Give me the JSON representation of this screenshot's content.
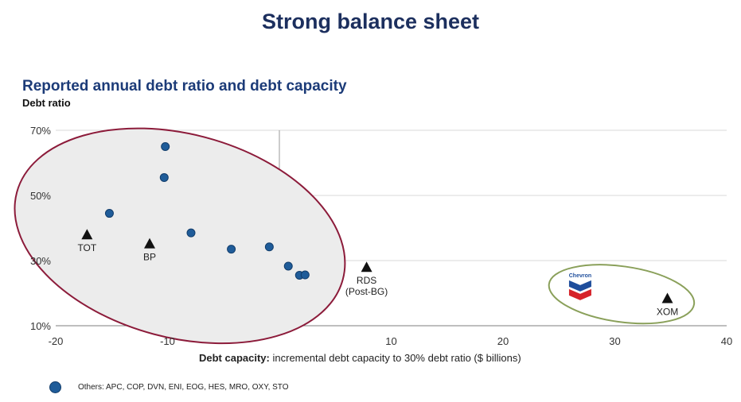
{
  "header": {
    "title": "Strong balance sheet"
  },
  "colors": {
    "accent_navy": "#1c2f5e",
    "point_blue": "#1f5c99",
    "peer_ellipse_stroke": "#8c1b3a",
    "peer_ellipse_fill": "#ececec",
    "chevron_ellipse_stroke": "#8aa05a",
    "grid": "#d9d9d9"
  },
  "chart_data": {
    "type": "scatter",
    "title": "Reported annual debt ratio and debt capacity",
    "ylabel": "Debt ratio",
    "xlabel_bold": "Debt capacity:",
    "xlabel_rest": "incremental debt capacity to 30% debt ratio ($ billions)",
    "xlim": [
      -20,
      40
    ],
    "ylim": [
      10,
      70
    ],
    "x_ticks": [
      -20,
      -10,
      0,
      10,
      20,
      30,
      40
    ],
    "x_tick_labels": [
      "-20",
      "-10",
      "",
      "10",
      "20",
      "30",
      "40"
    ],
    "y_ticks": [
      10,
      30,
      50,
      70
    ],
    "y_tick_labels": [
      "10%",
      "30%",
      "50%",
      "70%"
    ],
    "grid": "horizontal",
    "vertical_reference_x": 0,
    "series": [
      {
        "name": "Others: APC, COP, DVN, ENI, EOG, HES, MRO, OXY, STO",
        "marker": "circle",
        "points": [
          {
            "x": -10.2,
            "y": 65
          },
          {
            "x": -10.3,
            "y": 55.5
          },
          {
            "x": -15.2,
            "y": 44.5
          },
          {
            "x": -7.9,
            "y": 38.5
          },
          {
            "x": -4.3,
            "y": 33.5
          },
          {
            "x": -0.9,
            "y": 34.2
          },
          {
            "x": 0.8,
            "y": 28.3
          },
          {
            "x": 1.8,
            "y": 25.5
          },
          {
            "x": 2.3,
            "y": 25.6
          }
        ]
      },
      {
        "marker": "triangle",
        "points": [
          {
            "x": -17.2,
            "y": 38,
            "label": "TOT"
          },
          {
            "x": -11.6,
            "y": 35.2,
            "label": "BP"
          },
          {
            "x": 7.8,
            "y": 28,
            "label": "RDS",
            "label2": "(Post-BG)"
          },
          {
            "x": 34.7,
            "y": 18.4,
            "label": "XOM"
          }
        ]
      }
    ],
    "highlight": {
      "brand": "Chevron",
      "logo": "chevron-logo",
      "x": 26.9,
      "y": 21.5
    },
    "legend": "bottom-left"
  }
}
